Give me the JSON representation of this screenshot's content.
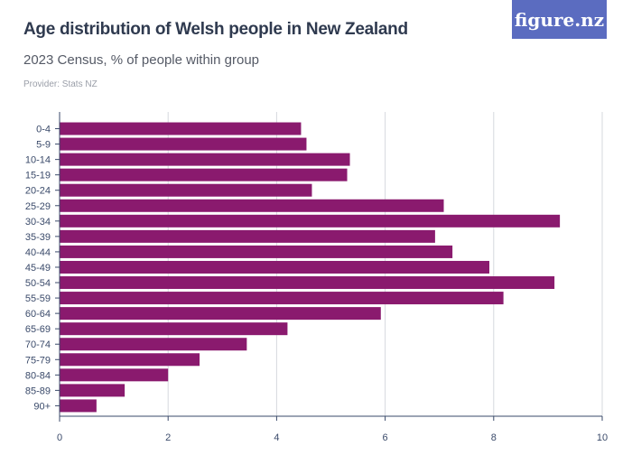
{
  "header": {
    "title": "Age distribution of Welsh people in New Zealand",
    "subtitle": "2023 Census, % of people within group",
    "provider": "Provider: Stats NZ",
    "logo_text": "figure.nz"
  },
  "colors": {
    "bar": "#8a1a6e",
    "grid": "#d6d9de",
    "axis": "#3a4a6a",
    "logo_bg": "#5b6cc0"
  },
  "chart_data": {
    "type": "bar",
    "orientation": "horizontal",
    "title": "Age distribution of Welsh people in New Zealand",
    "subtitle": "2023 Census, % of people within group",
    "categories": [
      "0-4",
      "5-9",
      "10-14",
      "15-19",
      "20-24",
      "25-29",
      "30-34",
      "35-39",
      "40-44",
      "45-49",
      "50-54",
      "55-59",
      "60-64",
      "65-69",
      "70-74",
      "75-79",
      "80-84",
      "85-89",
      "90+"
    ],
    "values": [
      4.45,
      4.55,
      5.35,
      5.3,
      4.65,
      7.08,
      9.22,
      6.92,
      7.24,
      7.92,
      9.12,
      8.18,
      5.92,
      4.2,
      3.45,
      2.58,
      2.0,
      1.2,
      0.68
    ],
    "xlim": [
      0,
      10
    ],
    "xticks": [
      0,
      2,
      4,
      6,
      8,
      10
    ],
    "grid": true
  }
}
